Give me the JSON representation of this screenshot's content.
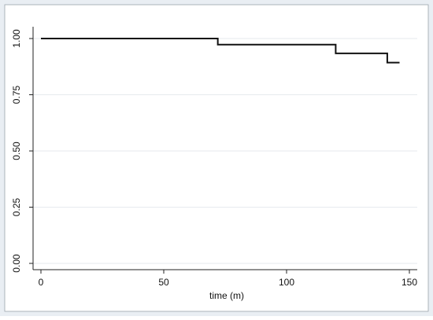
{
  "chart_data": {
    "type": "line",
    "title": "",
    "xlabel": "time (m)",
    "ylabel": "",
    "xlim": [
      0,
      150
    ],
    "ylim": [
      0,
      1
    ],
    "x_ticks": [
      0,
      50,
      100,
      150
    ],
    "x_tick_labels": [
      "0",
      "50",
      "100",
      "150"
    ],
    "y_ticks": [
      0,
      0.25,
      0.5,
      0.75,
      1
    ],
    "y_tick_labels": [
      "0.00",
      "0.25",
      "0.50",
      "0.75",
      "1.00"
    ],
    "grid": true,
    "series": [
      {
        "step": true,
        "color": "#111111",
        "x": [
          0,
          72,
          120,
          141,
          146
        ],
        "y": [
          1.0,
          0.973,
          0.934,
          0.893,
          0.893
        ]
      }
    ]
  }
}
